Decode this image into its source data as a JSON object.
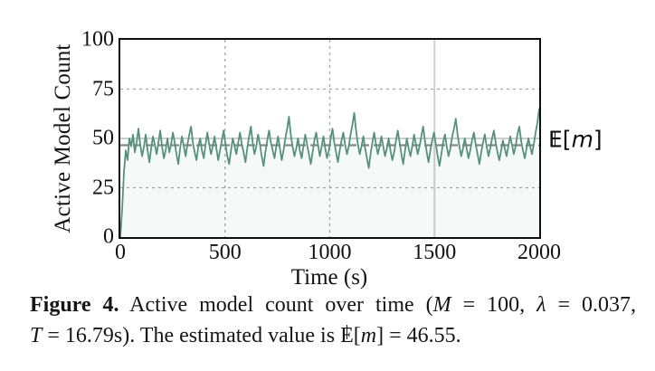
{
  "figure": {
    "expectation_label_segments": [
      {
        "t": "E",
        "style": "bb"
      },
      {
        "t": "[",
        "style": ""
      },
      {
        "t": "m",
        "style": "italic"
      },
      {
        "t": "]",
        "style": ""
      }
    ],
    "caption_line1_segments": [
      {
        "t": "Figure 4.",
        "style": "bold"
      },
      {
        "t": " Active model count over time (",
        "style": ""
      },
      {
        "t": "M",
        "style": "italic"
      },
      {
        "t": " = 100, ",
        "style": ""
      },
      {
        "t": "λ",
        "style": "italic"
      },
      {
        "t": " = 0.037,",
        "style": ""
      }
    ],
    "caption_line2_segments": [
      {
        "t": "T",
        "style": "italic"
      },
      {
        "t": " = 16.79s). The estimated value is ",
        "style": ""
      },
      {
        "t": "E",
        "style": "bb"
      },
      {
        "t": "[",
        "style": ""
      },
      {
        "t": "m",
        "style": "italic"
      },
      {
        "t": "] = 46.55.",
        "style": ""
      }
    ]
  },
  "chart_data": {
    "type": "line",
    "title": "",
    "xlabel": "Time (s)",
    "ylabel": "Active Model Count",
    "xlim": [
      0,
      2000
    ],
    "ylim": [
      0,
      100
    ],
    "xticks": [
      0,
      500,
      1000,
      1500,
      2000
    ],
    "yticks": [
      0,
      25,
      50,
      75,
      100
    ],
    "grid": true,
    "legend_position": "none",
    "line_color": "#569179",
    "mean_line": {
      "value": 46.55,
      "label": "E[m]",
      "color": "#878787",
      "style": "dashed"
    },
    "series_name": "active model count",
    "x_sample_start": 0,
    "x_sample_end": 2000,
    "values": [
      0,
      14,
      33,
      44,
      39,
      50,
      46,
      52,
      43,
      48,
      55,
      47,
      41,
      46,
      52,
      44,
      38,
      45,
      51,
      47,
      42,
      48,
      54,
      46,
      40,
      44,
      50,
      43,
      47,
      53,
      48,
      42,
      37,
      45,
      51,
      46,
      41,
      47,
      52,
      56,
      48,
      43,
      39,
      46,
      50,
      44,
      40,
      47,
      53,
      47,
      42,
      46,
      51,
      45,
      39,
      44,
      49,
      54,
      47,
      41,
      37,
      44,
      50,
      46,
      42,
      48,
      53,
      47,
      43,
      38,
      45,
      51,
      56,
      48,
      42,
      46,
      52,
      47,
      41,
      36,
      43,
      49,
      54,
      48,
      44,
      40,
      46,
      51,
      45,
      39,
      44,
      50,
      55,
      61,
      52,
      46,
      41,
      45,
      50,
      44,
      40,
      46,
      52,
      47,
      42,
      37,
      43,
      49,
      53,
      47,
      41,
      46,
      51,
      45,
      40,
      44,
      50,
      55,
      48,
      43,
      38,
      44,
      49,
      53,
      47,
      42,
      46,
      52,
      57,
      63,
      54,
      47,
      42,
      46,
      51,
      45,
      40,
      35,
      42,
      48,
      53,
      47,
      42,
      46,
      51,
      46,
      41,
      45,
      50,
      44,
      39,
      43,
      49,
      54,
      48,
      42,
      37,
      44,
      50,
      45,
      41,
      46,
      52,
      47,
      42,
      46,
      51,
      56,
      49,
      43,
      38,
      44,
      49,
      53,
      47,
      41,
      36,
      42,
      48,
      52,
      46,
      41,
      45,
      51,
      55,
      60,
      52,
      46,
      41,
      45,
      50,
      45,
      40,
      44,
      49,
      53,
      47,
      42,
      37,
      43,
      48,
      52,
      46,
      41,
      45,
      50,
      54,
      48,
      43,
      39,
      44,
      49,
      45,
      41,
      46,
      51,
      47,
      42,
      46,
      52,
      56,
      49,
      44,
      40,
      45,
      50,
      46,
      42,
      47,
      53,
      58,
      65
    ]
  }
}
